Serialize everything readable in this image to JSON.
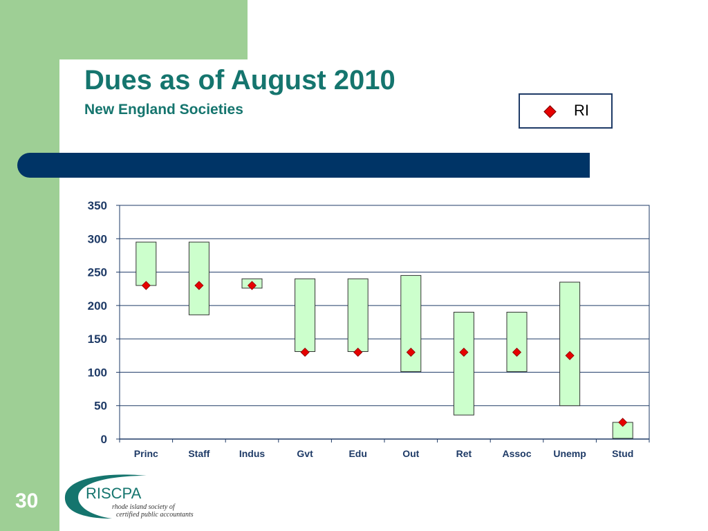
{
  "slide": {
    "title": "Dues as of August 2010",
    "subtitle": "New England Societies",
    "page_number": "30"
  },
  "legend": {
    "label": "RI"
  },
  "logo": {
    "name": "RISCPA",
    "tagline_line1": "rhode island society of",
    "tagline_line2": "certified public accountants"
  },
  "colors": {
    "teal_title": "#15756e",
    "green_band": "#9ecf95",
    "navy_bar": "#003466",
    "range_fill": "#ccffcc",
    "marker": "#e60000"
  },
  "chart_data": {
    "type": "bar",
    "title": "",
    "xlabel": "",
    "ylabel": "",
    "ylim": [
      0,
      350
    ],
    "yticks": [
      "0",
      "50",
      "100",
      "150",
      "200",
      "250",
      "300",
      "350"
    ],
    "categories": [
      "Princ",
      "Staff",
      "Indus",
      "Gvt",
      "Edu",
      "Out",
      "Ret",
      "Assoc",
      "Unemp",
      "Stud"
    ],
    "series": [
      {
        "low": [
          230,
          186,
          226,
          131,
          131,
          101,
          36,
          101,
          50,
          1
        ],
        "high": [
          295,
          295,
          240,
          240,
          240,
          245,
          190,
          190,
          235,
          25
        ]
      },
      {
        "name": "RI",
        "values": [
          230,
          230,
          230,
          130,
          130,
          130,
          130,
          130,
          125,
          25
        ]
      }
    ],
    "grid": true,
    "legend_position": "top-right"
  }
}
